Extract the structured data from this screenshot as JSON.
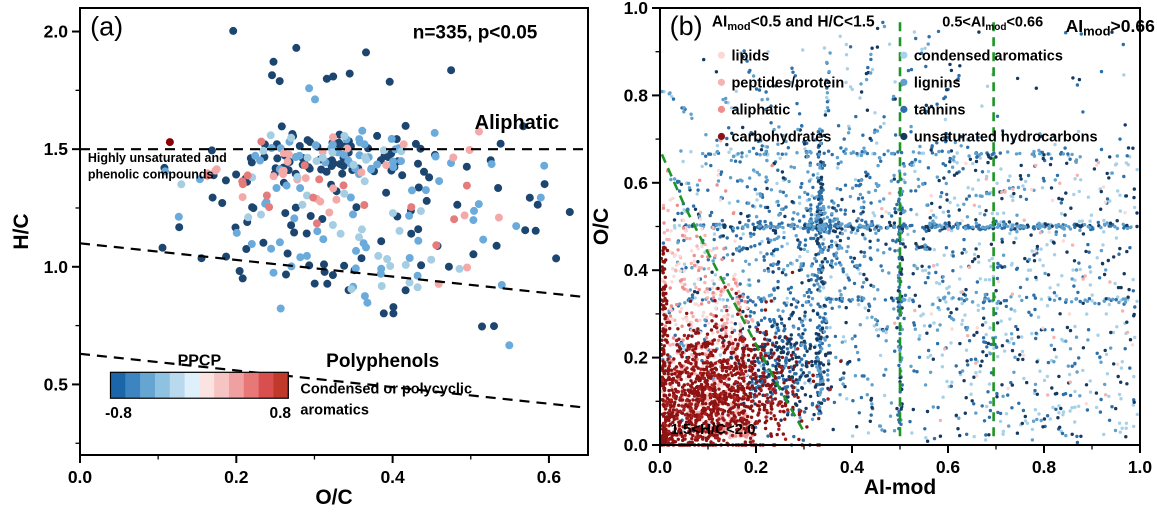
{
  "figure": {
    "background": "#ffffff"
  },
  "chart_data": [
    {
      "id": "panel_a",
      "type": "scatter",
      "panel_label": "(a)",
      "seed": 20240901,
      "xlabel": "O/C",
      "ylabel": "H/C",
      "xlim": [
        0.0,
        0.65
      ],
      "ylim": [
        0.2,
        2.1
      ],
      "xticks": [
        0.0,
        0.2,
        0.4,
        0.6
      ],
      "yticks": [
        0.5,
        1.0,
        1.5,
        2.0
      ],
      "x_minor_step": 0.1,
      "y_minor_step": 0.25,
      "n_points": 335,
      "palette": {
        "navy": "#1c4670",
        "blue": "#2e75b6",
        "sky": "#6aabdc",
        "pale": "#a6cee3",
        "pink": "#f4a9a9",
        "rose": "#e57c7c",
        "darkred": "#8b0000"
      },
      "point_radius": 4,
      "clip": {
        "x": [
          0.025,
          0.635
        ],
        "y": [
          0.62,
          2.06
        ]
      },
      "groups": [
        {
          "type": "gauss",
          "n": 120,
          "cx": 0.33,
          "cy": 1.47,
          "sx": 0.055,
          "sy": 0.055,
          "colors": {
            "navy": 0.6,
            "sky": 0.25,
            "pale": 0.1,
            "pink": 0.05
          }
        },
        {
          "type": "gauss",
          "n": 80,
          "cx": 0.3,
          "cy": 1.28,
          "sx": 0.1,
          "sy": 0.11,
          "colors": {
            "navy": 0.35,
            "sky": 0.3,
            "pale": 0.15,
            "pink": 0.15,
            "rose": 0.05
          }
        },
        {
          "type": "gauss",
          "n": 58,
          "cx": 0.36,
          "cy": 1.0,
          "sx": 0.085,
          "sy": 0.12,
          "colors": {
            "navy": 0.45,
            "sky": 0.35,
            "pale": 0.2
          }
        },
        {
          "type": "gauss",
          "n": 28,
          "cx": 0.26,
          "cy": 1.36,
          "sx": 0.05,
          "sy": 0.09,
          "colors": {
            "pink": 0.6,
            "rose": 0.3,
            "sky": 0.1
          }
        },
        {
          "type": "gauss",
          "n": 20,
          "cx": 0.5,
          "cy": 1.35,
          "sx": 0.06,
          "sy": 0.14,
          "colors": {
            "navy": 0.5,
            "sky": 0.3,
            "pink": 0.2
          }
        },
        {
          "type": "gauss",
          "n": 12,
          "cx": 0.3,
          "cy": 1.85,
          "sx": 0.07,
          "sy": 0.08,
          "colors": {
            "navy": 0.7,
            "sky": 0.3
          }
        },
        {
          "type": "gauss",
          "n": 16,
          "cx": 0.55,
          "cy": 1.2,
          "sx": 0.05,
          "sy": 0.18,
          "colors": {
            "navy": 0.5,
            "sky": 0.3,
            "pink": 0.2
          }
        }
      ],
      "extra_points": [
        {
          "x": 0.115,
          "y": 1.53,
          "color": "darkred"
        }
      ],
      "region_lines": [
        {
          "name": "aliphatic-boundary-line",
          "points": [
            [
              0.0,
              1.5
            ],
            [
              0.65,
              1.5
            ]
          ]
        },
        {
          "name": "unsaturated-boundary-line",
          "points": [
            [
              0.0,
              1.1
            ],
            [
              0.65,
              0.87
            ]
          ]
        },
        {
          "name": "polyphenol-boundary-line",
          "points": [
            [
              0.0,
              0.63
            ],
            [
              0.65,
              0.4
            ]
          ]
        }
      ],
      "region_labels": [
        {
          "text": "Aliphatic",
          "x": 0.505,
          "y": 1.585,
          "size": 20,
          "bold": true
        },
        {
          "text": "Highly unsaturated and",
          "x": 0.01,
          "y": 1.445,
          "size": 12.5,
          "bold": true
        },
        {
          "text": "phenolic compounds",
          "x": 0.01,
          "y": 1.375,
          "size": 12.5,
          "bold": true
        },
        {
          "text": "Polyphenols",
          "x": 0.315,
          "y": 0.575,
          "size": 19,
          "bold": true
        },
        {
          "text": "Condensed or polycyclic",
          "x": 0.282,
          "y": 0.462,
          "size": 14.5,
          "bold": true
        },
        {
          "text": "aromatics",
          "x": 0.282,
          "y": 0.372,
          "size": 14.5,
          "bold": true
        }
      ],
      "annotations": [
        {
          "text": "n=335, p<0.05",
          "color": "#000000",
          "size": 19,
          "bold": true,
          "xf": 0.655,
          "yf": 0.068,
          "anchor": "start"
        }
      ],
      "colorbar": {
        "title": "PPCP",
        "title_color": "#1f4e79",
        "min_label": "-0.8",
        "max_label": "0.8",
        "xf": 0.06,
        "yf": 0.815,
        "wf": 0.35,
        "hf": 0.058,
        "colors": [
          "#1b66a9",
          "#3d85c0",
          "#66a5d2",
          "#8fc1e1",
          "#b8d9ee",
          "#def0fb",
          "#fbe3e1",
          "#f6c4c2",
          "#f0a0a0",
          "#e87878",
          "#d94f4f",
          "#c0392b"
        ]
      }
    },
    {
      "id": "panel_b",
      "type": "scatter",
      "panel_label": "(b)",
      "seed": 777001,
      "xlabel": "AI-mod",
      "ylabel": "O/C",
      "xlim": [
        0.0,
        1.0
      ],
      "ylim": [
        0.0,
        1.0
      ],
      "xticks": [
        0.0,
        0.2,
        0.4,
        0.6,
        0.8,
        1.0
      ],
      "yticks": [
        0.0,
        0.2,
        0.4,
        0.6,
        0.8,
        1.0
      ],
      "x_minor_step": 0.1,
      "y_minor_step": 0.1,
      "palette": {
        "navy": "#16395f",
        "tannin": "#2d6fa8",
        "lignin": "#5fa0cc",
        "lightblue": "#a7d1e8",
        "palepink": "#fbd9d7",
        "lightpink": "#f5b4b2",
        "salmon": "#ee8d8d",
        "darkred": "#8d1212",
        "red2": "#a81e1e"
      },
      "point_radius": 1.7,
      "clip": {
        "x": [
          0.002,
          0.998
        ],
        "y": [
          0.0,
          0.97
        ]
      },
      "groups": [
        {
          "type": "uniform",
          "n": 620,
          "x": [
            0.03,
            0.99
          ],
          "y": [
            0.01,
            0.72
          ],
          "colors": {
            "lignin": 0.3,
            "tannin": 0.3,
            "lightblue": 0.25,
            "navy": 0.15
          }
        },
        {
          "type": "rays",
          "origin": [
            0.333,
            0.5
          ],
          "n_rays": 30,
          "angle_start": 0,
          "angle_end": 360,
          "len_min": 0.04,
          "len_max": 0.55,
          "pts_per_ray": 30,
          "jitter": 0.004,
          "colors": {
            "tannin": 0.45,
            "lignin": 0.3,
            "navy": 0.15,
            "lightblue": 0.1
          }
        },
        {
          "type": "hline",
          "y": 0.5,
          "x": [
            0.03,
            0.995
          ],
          "n": 290,
          "jitter": 0.0035,
          "colors": {
            "tannin": 0.4,
            "lignin": 0.3,
            "navy": 0.2,
            "lightblue": 0.1
          }
        },
        {
          "type": "vline",
          "x": 0.333,
          "y": [
            0.07,
            0.73
          ],
          "n": 140,
          "jitter": 0.0035,
          "colors": {
            "tannin": 0.5,
            "navy": 0.25,
            "lignin": 0.25
          }
        },
        {
          "type": "vline",
          "x": 0.5,
          "y": [
            0.03,
            0.62
          ],
          "n": 90,
          "jitter": 0.0035,
          "colors": {
            "tannin": 0.5,
            "navy": 0.3,
            "lignin": 0.2
          }
        },
        {
          "type": "hline",
          "y": 0.333,
          "x": [
            0.05,
            0.98
          ],
          "n": 110,
          "jitter": 0.0035,
          "colors": {
            "tannin": 0.45,
            "lignin": 0.35,
            "lightblue": 0.2
          }
        },
        {
          "type": "hline",
          "y": 0.667,
          "x": [
            0.05,
            0.9
          ],
          "n": 70,
          "jitter": 0.0035,
          "colors": {
            "lignin": 0.4,
            "lightblue": 0.35,
            "tannin": 0.25
          }
        },
        {
          "type": "gauss",
          "n": 320,
          "cx": 0.26,
          "cy": 0.19,
          "sx": 0.055,
          "sy": 0.06,
          "colors": {
            "navy": 0.55,
            "tannin": 0.45
          }
        },
        {
          "type": "uniform",
          "n": 380,
          "x": [
            0.55,
            0.995
          ],
          "y": [
            0.005,
            0.68
          ],
          "colors": {
            "lightblue": 0.45,
            "navy": 0.3,
            "tannin": 0.25
          }
        },
        {
          "type": "uniform",
          "n": 55,
          "x": [
            0.08,
            0.97
          ],
          "y": [
            0.72,
            0.95
          ],
          "colors": {
            "lightblue": 0.4,
            "tannin": 0.3,
            "navy": 0.3
          }
        },
        {
          "type": "rays",
          "origin": [
            0.19,
            0.02
          ],
          "n_rays": 16,
          "angle_start": 95,
          "angle_end": 178,
          "len_min": 0.05,
          "len_max": 0.62,
          "pts_per_ray": 40,
          "jitter": 0.003,
          "colors": {
            "palepink": 0.35,
            "lightpink": 0.35,
            "salmon": 0.3
          }
        },
        {
          "type": "gauss",
          "n": 260,
          "cx": 0.07,
          "cy": 0.3,
          "sx": 0.06,
          "sy": 0.16,
          "colors": {
            "palepink": 0.4,
            "lightpink": 0.35,
            "salmon": 0.25
          }
        },
        {
          "type": "uniform",
          "n": 60,
          "x": [
            0.45,
            0.99
          ],
          "y": [
            0.05,
            0.65
          ],
          "colors": {
            "palepink": 0.5,
            "lightpink": 0.5
          }
        },
        {
          "type": "gauss",
          "n": 1000,
          "cx": 0.115,
          "cy": 0.12,
          "sx": 0.085,
          "sy": 0.075,
          "colors": {
            "darkred": 0.8,
            "red2": 0.2
          }
        },
        {
          "type": "rays",
          "origin": [
            0.0,
            0.0
          ],
          "n_rays": 12,
          "angle_start": 12,
          "angle_end": 80,
          "len_min": 0.04,
          "len_max": 0.34,
          "pts_per_ray": 20,
          "jitter": 0.003,
          "colors": {
            "darkred": 1
          }
        },
        {
          "type": "vline",
          "x": 0.008,
          "y": [
            0.0,
            0.46
          ],
          "n": 120,
          "jitter": 0.004,
          "colors": {
            "darkred": 1
          }
        }
      ],
      "boundaries": {
        "color": "#1f9427",
        "vlines": [
          {
            "x": 0.5,
            "y1": 0.02,
            "y2": 0.97
          },
          {
            "x": 0.695,
            "y1": 0.02,
            "y2": 0.97
          }
        ],
        "curve": [
          [
            0.004,
            0.665
          ],
          [
            0.05,
            0.55
          ],
          [
            0.1,
            0.44
          ],
          [
            0.15,
            0.335
          ],
          [
            0.2,
            0.23
          ],
          [
            0.25,
            0.128
          ],
          [
            0.3,
            0.03
          ]
        ]
      },
      "annotations": [
        {
          "text": "AI{mod}<0.5 and H/C<1.5",
          "color": "#ff0000",
          "size": 15.5,
          "bold": true,
          "xf": 0.108,
          "yf": 0.042,
          "anchor": "start"
        },
        {
          "text": "0.5<AI{mod}<0.66",
          "color": "#007d00",
          "size": 14.5,
          "bold": true,
          "xf": 0.588,
          "yf": 0.042,
          "anchor": "start"
        },
        {
          "text": "AI{mod}>0.66",
          "color": "#ff0000",
          "size": 17.5,
          "bold": true,
          "xf": 0.845,
          "yf": 0.055,
          "anchor": "start"
        },
        {
          "text": "1.5<H/C<2.0",
          "color": "#ff0000",
          "size": 15,
          "bold": true,
          "xf": 0.022,
          "yf": 0.975,
          "anchor": "start"
        }
      ],
      "legend": {
        "y_start": 0.108,
        "dy": 0.062,
        "marker_radius": 3.6,
        "size": 14.5,
        "columns": [
          {
            "xf": 0.128,
            "items": [
              {
                "label": "lipids",
                "color": "palepink"
              },
              {
                "label": "peptides/protein",
                "color": "lightpink"
              },
              {
                "label": "aliphatic",
                "color": "salmon"
              },
              {
                "label": "carbohydrates",
                "color": "darkred"
              }
            ]
          },
          {
            "xf": 0.508,
            "items": [
              {
                "label": "condensed aromatics",
                "color": "lightblue"
              },
              {
                "label": "lignins",
                "color": "lignin"
              },
              {
                "label": "tannins",
                "color": "tannin"
              },
              {
                "label": "unsaturated hydrocarbons",
                "color": "navy"
              }
            ]
          }
        ]
      }
    }
  ]
}
